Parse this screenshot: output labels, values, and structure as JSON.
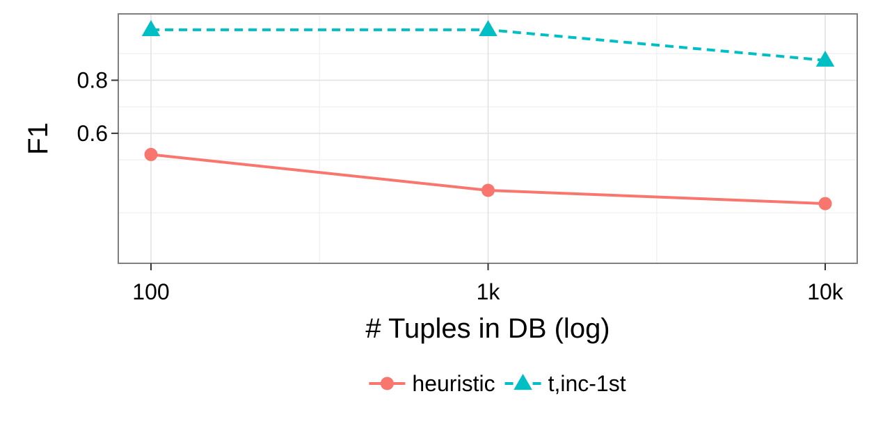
{
  "chart_data": {
    "type": "line",
    "xlabel": "# Tuples in DB (log)",
    "ylabel": "F1",
    "x_scale": "log",
    "x": [
      100,
      1000,
      10000
    ],
    "x_tick_labels": [
      "100",
      "1k",
      "10k"
    ],
    "y_ticks": [
      0.6,
      0.8
    ],
    "y_tick_labels": [
      "0.6",
      "0.8"
    ],
    "xlim": [
      100,
      10000
    ],
    "ylim": [
      0.11,
      1.05
    ],
    "grid": true,
    "legend_position": "bottom",
    "series": [
      {
        "name": "heuristic",
        "values": [
          0.52,
          0.385,
          0.335
        ],
        "color": "#F8766D",
        "line_style": "solid",
        "marker": "circle"
      },
      {
        "name": "t,inc-1st",
        "values": [
          0.99,
          0.99,
          0.875
        ],
        "color": "#00BFC4",
        "line_style": "dashed",
        "marker": "triangle"
      }
    ]
  }
}
